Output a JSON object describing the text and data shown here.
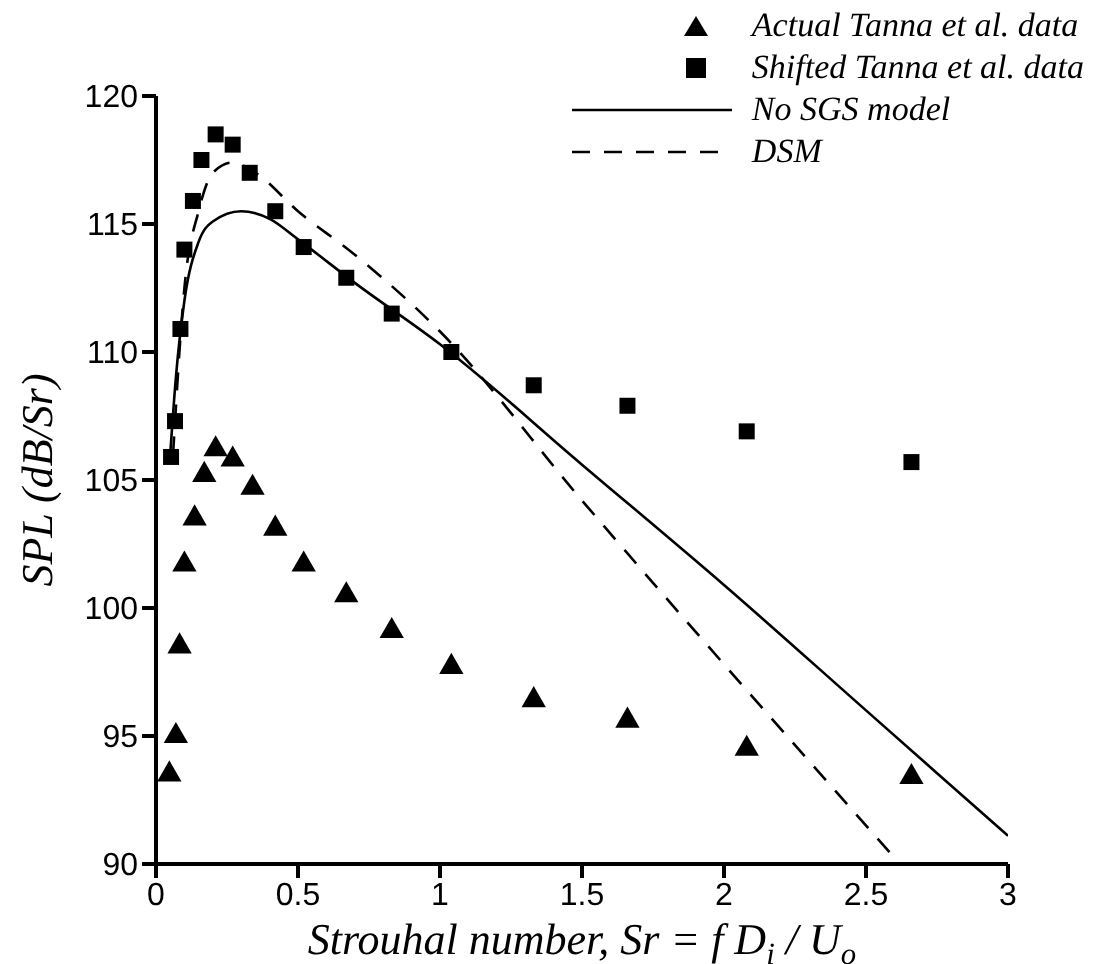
{
  "chart_data": {
    "type": "scatter",
    "xlabel": "Strouhal number, Sr = f D$_{i}$ / U$_{o}$",
    "ylabel": "SPL (dB/Sr)",
    "xlim": [
      0,
      3
    ],
    "ylim": [
      90,
      120
    ],
    "xticks": [
      0,
      0.5,
      1,
      1.5,
      2,
      2.5,
      3
    ],
    "yticks": [
      90,
      95,
      100,
      105,
      110,
      115,
      120
    ],
    "grid": false,
    "legend": "top right",
    "series": [
      {
        "name": "Actual Tanna et al. data",
        "marker": "triangle",
        "color": "#000000",
        "x": [
          0.047,
          0.07,
          0.083,
          0.1,
          0.136,
          0.17,
          0.21,
          0.27,
          0.34,
          0.42,
          0.52,
          0.67,
          0.83,
          1.04,
          1.33,
          1.66,
          2.08,
          2.66
        ],
        "values": [
          93.5,
          95.0,
          98.5,
          101.7,
          103.5,
          105.2,
          106.2,
          105.8,
          104.7,
          103.1,
          101.7,
          100.5,
          99.1,
          97.7,
          96.4,
          95.6,
          94.5,
          93.4
        ]
      },
      {
        "name": "Shifted Tanna et al. data",
        "marker": "square",
        "color": "#000000",
        "x": [
          0.053,
          0.067,
          0.086,
          0.1,
          0.13,
          0.16,
          0.21,
          0.27,
          0.33,
          0.42,
          0.52,
          0.67,
          0.83,
          1.04,
          1.33,
          1.66,
          2.08,
          2.66
        ],
        "values": [
          105.9,
          107.3,
          110.9,
          114.0,
          115.9,
          117.5,
          118.5,
          118.1,
          117.0,
          115.5,
          114.1,
          112.9,
          111.5,
          110.0,
          108.7,
          107.9,
          106.9,
          105.7
        ]
      },
      {
        "name": "No SGS model",
        "type": "line",
        "line_style": "solid",
        "marker": "none",
        "color": "#000000",
        "x": [
          0.05,
          0.07,
          0.1,
          0.15,
          0.2,
          0.3,
          0.4,
          0.5,
          0.7,
          1.0,
          1.5,
          2,
          2.5,
          3
        ],
        "values": [
          106,
          109,
          112,
          114.3,
          115.1,
          115.5,
          115.2,
          114.4,
          112.7,
          110.3,
          105.6,
          100.9,
          96.0,
          91.1
        ]
      },
      {
        "name": "DSM",
        "type": "line",
        "line_style": "dashed",
        "marker": "none",
        "color": "#000000",
        "x": [
          0.06,
          0.1,
          0.15,
          0.2,
          0.27,
          0.35,
          0.5,
          0.7,
          1.0,
          1.5,
          2,
          2.62
        ],
        "values": [
          106,
          112.5,
          115.5,
          117,
          117.4,
          117,
          115.5,
          113.8,
          110.8,
          104.2,
          97.8,
          90
        ]
      }
    ]
  }
}
